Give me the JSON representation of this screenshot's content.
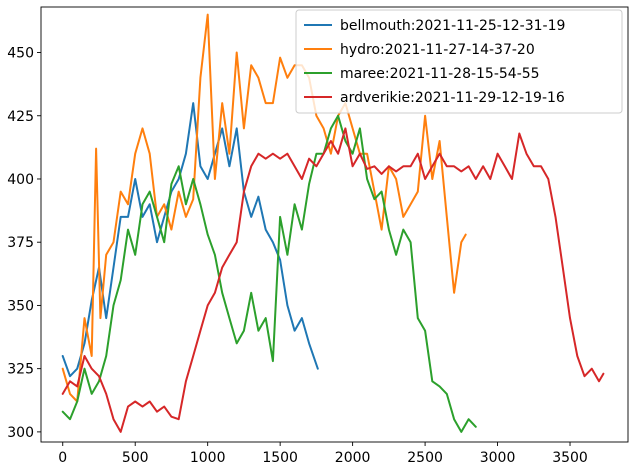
{
  "chart_data": {
    "type": "line",
    "title": "",
    "xlabel": "",
    "ylabel": "",
    "xlim": [
      -150,
      3900
    ],
    "ylim": [
      296,
      468
    ],
    "xticks": [
      0,
      500,
      1000,
      1500,
      2000,
      2500,
      3000,
      3500
    ],
    "yticks": [
      300,
      325,
      350,
      375,
      400,
      425,
      450
    ],
    "grid": false,
    "legend_position": "top-right",
    "series": [
      {
        "name": "bellmouth:2021-11-25-12-31-19",
        "color": "#1f77b4",
        "x": [
          0,
          50,
          100,
          150,
          200,
          250,
          300,
          350,
          400,
          450,
          500,
          550,
          600,
          650,
          700,
          750,
          800,
          850,
          900,
          950,
          1000,
          1050,
          1100,
          1150,
          1200,
          1250,
          1300,
          1350,
          1400,
          1450,
          1500,
          1550,
          1600,
          1650,
          1700,
          1760
        ],
        "y": [
          330,
          322,
          325,
          335,
          352,
          365,
          345,
          365,
          385,
          385,
          400,
          385,
          390,
          375,
          385,
          395,
          400,
          410,
          430,
          405,
          400,
          410,
          420,
          405,
          420,
          395,
          385,
          393,
          380,
          375,
          368,
          350,
          340,
          345,
          335,
          325
        ]
      },
      {
        "name": "hydro:2021-11-27-14-37-20",
        "color": "#ff7f0e",
        "x": [
          0,
          50,
          100,
          150,
          200,
          230,
          260,
          300,
          350,
          400,
          450,
          500,
          550,
          600,
          650,
          700,
          750,
          800,
          850,
          900,
          950,
          1000,
          1050,
          1100,
          1150,
          1200,
          1250,
          1300,
          1350,
          1400,
          1450,
          1500,
          1550,
          1600,
          1650,
          1700,
          1750,
          1800,
          1850,
          1900,
          1950,
          2000,
          2050,
          2100,
          2150,
          2200,
          2250,
          2300,
          2350,
          2400,
          2450,
          2500,
          2550,
          2600,
          2650,
          2700,
          2750,
          2780
        ],
        "y": [
          325,
          315,
          312,
          345,
          330,
          412,
          345,
          370,
          375,
          395,
          390,
          410,
          420,
          410,
          385,
          390,
          380,
          395,
          385,
          392,
          440,
          465,
          400,
          430,
          410,
          450,
          420,
          445,
          440,
          430,
          430,
          448,
          440,
          445,
          445,
          440,
          425,
          420,
          410,
          425,
          430,
          420,
          410,
          410,
          395,
          380,
          405,
          400,
          385,
          390,
          395,
          425,
          400,
          415,
          385,
          355,
          375,
          378
        ]
      },
      {
        "name": "maree:2021-11-28-15-54-55",
        "color": "#2ca02c",
        "x": [
          0,
          50,
          100,
          150,
          200,
          250,
          300,
          350,
          400,
          450,
          500,
          550,
          600,
          650,
          700,
          750,
          800,
          850,
          900,
          950,
          1000,
          1050,
          1100,
          1150,
          1200,
          1250,
          1300,
          1350,
          1400,
          1450,
          1500,
          1550,
          1600,
          1650,
          1700,
          1750,
          1800,
          1850,
          1900,
          1950,
          2000,
          2050,
          2100,
          2150,
          2200,
          2250,
          2300,
          2350,
          2400,
          2450,
          2500,
          2550,
          2600,
          2650,
          2700,
          2750,
          2800,
          2850
        ],
        "y": [
          308,
          305,
          312,
          325,
          315,
          320,
          330,
          350,
          360,
          380,
          370,
          390,
          395,
          385,
          375,
          398,
          405,
          390,
          400,
          390,
          378,
          370,
          355,
          345,
          335,
          340,
          355,
          340,
          345,
          328,
          385,
          370,
          390,
          380,
          398,
          410,
          410,
          420,
          425,
          415,
          410,
          420,
          400,
          392,
          395,
          380,
          370,
          380,
          375,
          345,
          340,
          320,
          318,
          315,
          305,
          300,
          305,
          302
        ]
      },
      {
        "name": "ardverikie:2021-11-29-12-19-16",
        "color": "#d62728",
        "x": [
          0,
          50,
          100,
          150,
          200,
          250,
          300,
          350,
          400,
          450,
          500,
          550,
          600,
          650,
          700,
          750,
          800,
          850,
          900,
          950,
          1000,
          1050,
          1100,
          1150,
          1200,
          1250,
          1300,
          1350,
          1400,
          1450,
          1500,
          1550,
          1600,
          1650,
          1700,
          1750,
          1800,
          1850,
          1900,
          1950,
          2000,
          2050,
          2100,
          2150,
          2200,
          2250,
          2300,
          2350,
          2400,
          2450,
          2500,
          2550,
          2600,
          2650,
          2700,
          2750,
          2800,
          2850,
          2900,
          2950,
          3000,
          3050,
          3100,
          3150,
          3200,
          3250,
          3300,
          3350,
          3400,
          3450,
          3500,
          3550,
          3600,
          3650,
          3700,
          3730
        ],
        "y": [
          315,
          320,
          318,
          330,
          325,
          322,
          315,
          305,
          300,
          310,
          312,
          310,
          312,
          308,
          310,
          306,
          305,
          320,
          330,
          340,
          350,
          355,
          365,
          370,
          375,
          395,
          405,
          410,
          408,
          410,
          408,
          410,
          405,
          400,
          408,
          405,
          410,
          415,
          410,
          420,
          405,
          410,
          404,
          405,
          402,
          405,
          403,
          405,
          405,
          410,
          400,
          405,
          410,
          405,
          405,
          403,
          405,
          400,
          405,
          400,
          410,
          405,
          400,
          418,
          410,
          405,
          405,
          400,
          385,
          365,
          345,
          330,
          322,
          325,
          320,
          323
        ]
      }
    ]
  }
}
